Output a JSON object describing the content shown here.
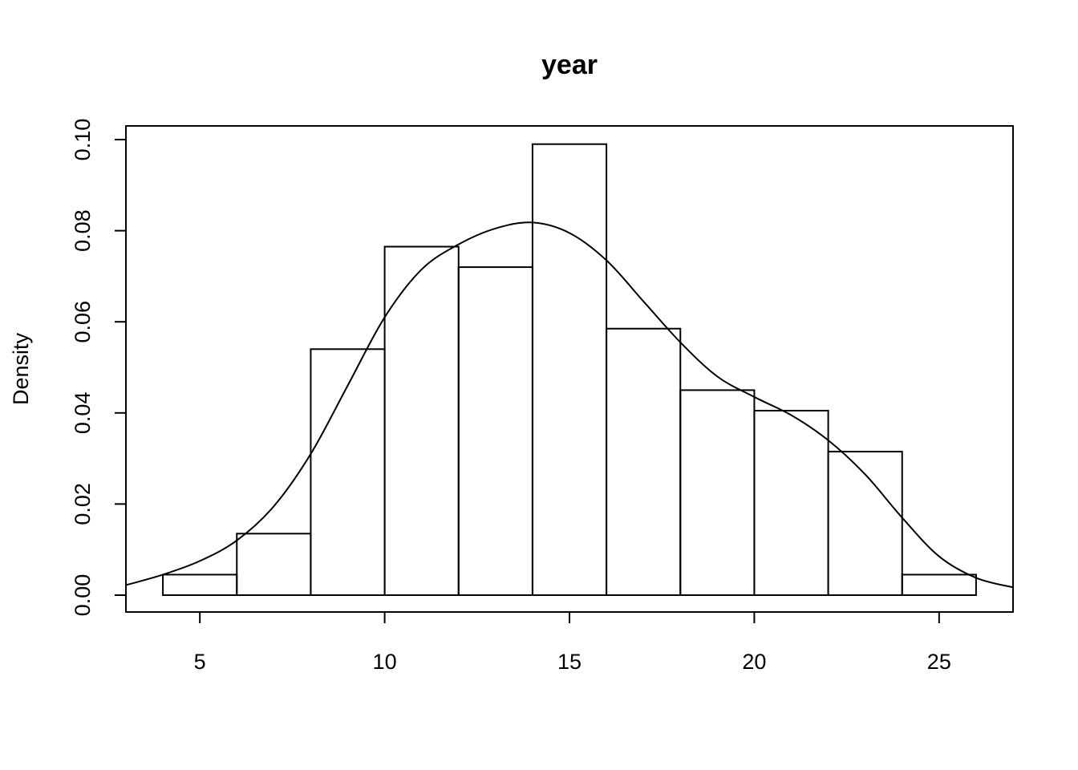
{
  "chart_data": {
    "type": "histogram",
    "title": "year",
    "xlabel": "",
    "ylabel": "Density",
    "xlim": [
      3,
      27
    ],
    "ylim": [
      -0.0037,
      0.103
    ],
    "x_ticks": [
      5,
      10,
      15,
      20,
      25
    ],
    "x_tick_labels": [
      "5",
      "10",
      "15",
      "20",
      "25"
    ],
    "y_ticks": [
      0,
      0.02,
      0.04,
      0.06,
      0.08,
      0.1
    ],
    "y_tick_labels": [
      "0.00",
      "0.02",
      "0.04",
      "0.06",
      "0.08",
      "0.10"
    ],
    "grid": false,
    "bins": [
      {
        "x0": 4,
        "x1": 6,
        "density": 0.0045
      },
      {
        "x0": 6,
        "x1": 8,
        "density": 0.0135
      },
      {
        "x0": 8,
        "x1": 10,
        "density": 0.054
      },
      {
        "x0": 10,
        "x1": 12,
        "density": 0.0765
      },
      {
        "x0": 12,
        "x1": 14,
        "density": 0.072
      },
      {
        "x0": 14,
        "x1": 16,
        "density": 0.099
      },
      {
        "x0": 16,
        "x1": 18,
        "density": 0.0585
      },
      {
        "x0": 18,
        "x1": 20,
        "density": 0.045
      },
      {
        "x0": 20,
        "x1": 22,
        "density": 0.0405
      },
      {
        "x0": 22,
        "x1": 24,
        "density": 0.0315
      },
      {
        "x0": 24,
        "x1": 26,
        "density": 0.0045
      }
    ],
    "density_curve": {
      "x": [
        3,
        4,
        5,
        6,
        7,
        8,
        9,
        10,
        11,
        12,
        13,
        14,
        15,
        16,
        17,
        18,
        19,
        20,
        21,
        22,
        23,
        24,
        25,
        26,
        27
      ],
      "y": [
        0.0022,
        0.0045,
        0.0075,
        0.012,
        0.0195,
        0.031,
        0.046,
        0.061,
        0.0715,
        0.077,
        0.0805,
        0.0818,
        0.0795,
        0.0735,
        0.0645,
        0.0555,
        0.048,
        0.0435,
        0.0395,
        0.034,
        0.0265,
        0.017,
        0.0085,
        0.0038,
        0.0017
      ]
    }
  }
}
